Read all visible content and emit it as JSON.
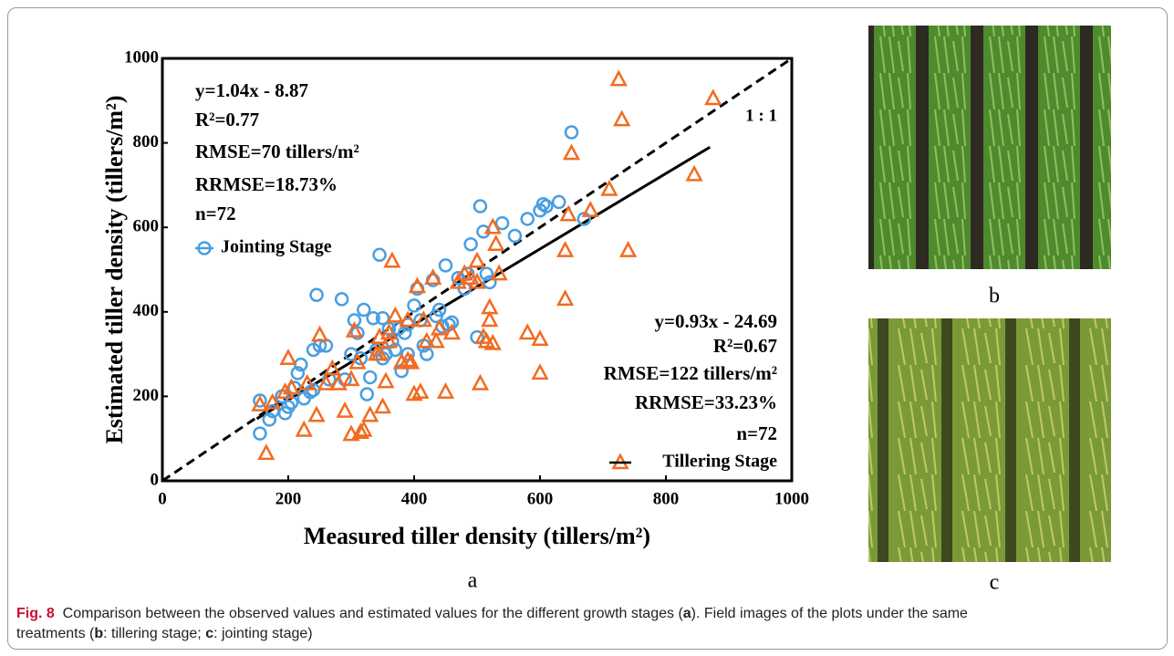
{
  "chart_data": {
    "type": "scatter",
    "xlabel": "Measured tiller density (tillers/m²)",
    "ylabel": "Estimated tiller density (tillers/m²)",
    "xlim": [
      0,
      1000
    ],
    "ylim": [
      0,
      1000
    ],
    "xticks": [
      0,
      200,
      400,
      600,
      800,
      1000
    ],
    "yticks": [
      0,
      200,
      400,
      600,
      800,
      1000
    ],
    "series": [
      {
        "name": "Jointing Stage",
        "color": "#4a9ee0",
        "marker": "circle",
        "x": [
          155,
          155,
          170,
          175,
          190,
          195,
          200,
          205,
          210,
          215,
          220,
          225,
          235,
          240,
          245,
          250,
          260,
          265,
          285,
          290,
          300,
          305,
          310,
          315,
          320,
          325,
          330,
          335,
          340,
          345,
          350,
          355,
          360,
          365,
          370,
          375,
          380,
          385,
          390,
          400,
          405,
          410,
          415,
          420,
          430,
          435,
          440,
          445,
          450,
          455,
          460,
          470,
          480,
          485,
          490,
          500,
          505,
          510,
          515,
          520,
          540,
          560,
          580,
          600,
          605,
          610,
          630,
          650,
          670,
          350,
          390,
          240
        ],
        "y": [
          190,
          112,
          145,
          165,
          200,
          160,
          175,
          185,
          220,
          255,
          275,
          195,
          210,
          310,
          440,
          320,
          320,
          240,
          430,
          240,
          300,
          380,
          350,
          290,
          405,
          205,
          245,
          385,
          310,
          535,
          290,
          300,
          360,
          330,
          310,
          360,
          260,
          350,
          370,
          415,
          455,
          380,
          320,
          300,
          475,
          390,
          405,
          365,
          510,
          370,
          375,
          480,
          455,
          490,
          560,
          340,
          650,
          590,
          490,
          470,
          610,
          580,
          620,
          640,
          655,
          650,
          660,
          825,
          620,
          385,
          300,
          215
        ]
      },
      {
        "name": "Tillering Stage",
        "color": "#f26b21",
        "marker": "triangle",
        "x": [
          155,
          165,
          175,
          195,
          200,
          205,
          225,
          230,
          245,
          250,
          260,
          270,
          280,
          290,
          300,
          305,
          310,
          315,
          320,
          330,
          340,
          345,
          350,
          355,
          360,
          365,
          370,
          380,
          390,
          395,
          400,
          405,
          410,
          415,
          420,
          430,
          435,
          440,
          450,
          460,
          470,
          480,
          490,
          500,
          505,
          510,
          515,
          520,
          520,
          525,
          530,
          535,
          580,
          600,
          600,
          640,
          640,
          645,
          650,
          680,
          710,
          725,
          730,
          740,
          845,
          875,
          345,
          360,
          390,
          300,
          500,
          525
        ],
        "y": [
          180,
          65,
          185,
          210,
          290,
          220,
          120,
          230,
          155,
          345,
          230,
          265,
          230,
          165,
          110,
          355,
          280,
          115,
          120,
          155,
          300,
          340,
          175,
          235,
          330,
          520,
          390,
          280,
          380,
          280,
          205,
          460,
          210,
          380,
          330,
          480,
          330,
          360,
          210,
          350,
          470,
          490,
          480,
          520,
          230,
          340,
          330,
          380,
          410,
          600,
          560,
          490,
          350,
          335,
          255,
          545,
          430,
          630,
          775,
          640,
          690,
          950,
          855,
          545,
          725,
          905,
          300,
          350,
          285,
          240,
          470,
          325
        ]
      }
    ],
    "reference_line": {
      "x": [
        0,
        1000
      ],
      "y": [
        0,
        1000
      ],
      "label": "1 : 1"
    },
    "fit_line": {
      "x": [
        150,
        870
      ],
      "y": [
        147,
        790
      ]
    },
    "annotations": {
      "jointing": [
        "y=1.04x - 8.87",
        "R²=0.77",
        "RMSE=70 tillers/m²",
        "RRMSE=18.73%",
        "n=72"
      ],
      "tillering": [
        "y=0.93x - 24.69",
        "R²=0.67",
        "RMSE=122 tillers/m²",
        "RRMSE=33.23%",
        "n=72"
      ]
    }
  },
  "panel_labels": [
    "a",
    "b",
    "c"
  ],
  "caption": {
    "label": "Fig. 8",
    "parts": [
      "Comparison between the observed values and estimated values for the different growth stages (",
      "a",
      "). Field images of the plots under the same",
      "treatments (",
      "b",
      ": tillering stage; ",
      "c",
      ": jointing stage)"
    ]
  }
}
